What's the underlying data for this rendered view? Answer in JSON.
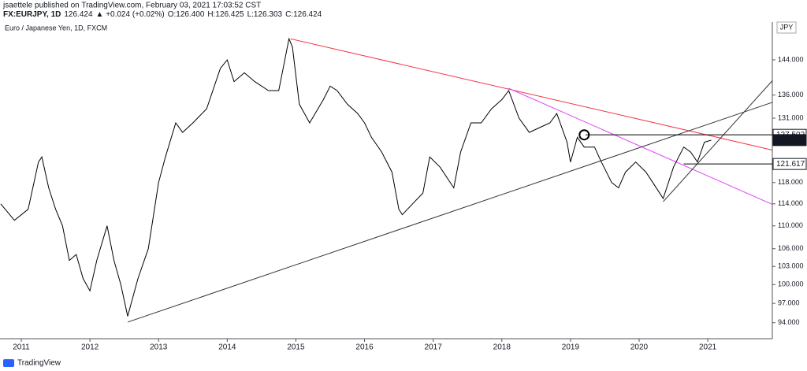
{
  "chart_data": {
    "type": "line",
    "title": "jsaettele published on TradingView.com, February 03, 2021 17:03:52 CST",
    "quote": [
      "FX:EURJPY, 1D",
      "126.424",
      "▲ +0.024 (+0.02%)",
      "O:126.400",
      "H:126.425",
      "L:126.303",
      "C:126.424"
    ],
    "subtitle": "Euro / Japanese Yen, 1D, FXCM",
    "currency": "JPY",
    "brand": "TradingView",
    "color": "#000000",
    "log_scale": true,
    "x": [
      2010.7,
      2010.9,
      2011.1,
      2011.25,
      2011.3,
      2011.4,
      2011.5,
      2011.6,
      2011.7,
      2011.8,
      2011.9,
      2012.0,
      2012.1,
      2012.25,
      2012.35,
      2012.45,
      2012.55,
      2012.7,
      2012.85,
      2013.0,
      2013.1,
      2013.25,
      2013.35,
      2013.5,
      2013.7,
      2013.9,
      2014.0,
      2014.1,
      2014.25,
      2014.4,
      2014.6,
      2014.75,
      2014.9,
      2014.95,
      2015.05,
      2015.2,
      2015.4,
      2015.5,
      2015.6,
      2015.75,
      2015.9,
      2016.0,
      2016.1,
      2016.25,
      2016.4,
      2016.5,
      2016.55,
      2016.7,
      2016.85,
      2016.95,
      2017.1,
      2017.3,
      2017.4,
      2017.55,
      2017.7,
      2017.85,
      2018.0,
      2018.1,
      2018.25,
      2018.4,
      2018.55,
      2018.7,
      2018.8,
      2018.95,
      2019.0,
      2019.1,
      2019.2,
      2019.35,
      2019.45,
      2019.6,
      2019.7,
      2019.8,
      2019.95,
      2020.1,
      2020.2,
      2020.3,
      2020.35,
      2020.5,
      2020.65,
      2020.75,
      2020.85,
      2020.95,
      2021.05
    ],
    "values": [
      114,
      111,
      113,
      122,
      123,
      117,
      113,
      110,
      104,
      105,
      101,
      99,
      104,
      110,
      104,
      100,
      95,
      101,
      106,
      118,
      123,
      130,
      128,
      130,
      133,
      142,
      144,
      139,
      141,
      139,
      137,
      137,
      149,
      147,
      134,
      130,
      135,
      138,
      137,
      134,
      132,
      130,
      127,
      124,
      120,
      113,
      112,
      114,
      116,
      123,
      121,
      117,
      124,
      130,
      130,
      133,
      135,
      137,
      131,
      128,
      129,
      130,
      132,
      126,
      122,
      127,
      125,
      125,
      122,
      118,
      117,
      120,
      122,
      120,
      118,
      116,
      115,
      121,
      125,
      124,
      122,
      126,
      126.4
    ],
    "xlim": [
      2010.69,
      2021.94
    ],
    "xticks": [
      2011,
      2012,
      2013,
      2014,
      2015,
      2016,
      2017,
      2018,
      2019,
      2020,
      2021
    ],
    "ylim": [
      91.6,
      153.1
    ],
    "yticks": [
      {
        "value": 94,
        "label": "94.000"
      },
      {
        "value": 97,
        "label": "97.000"
      },
      {
        "value": 100,
        "label": "100.000"
      },
      {
        "value": 103,
        "label": "103.000"
      },
      {
        "value": 106,
        "label": "106.000"
      },
      {
        "value": 110,
        "label": "110.000"
      },
      {
        "value": 114,
        "label": "114.000"
      },
      {
        "value": 118,
        "label": "118.000"
      },
      {
        "value": 131,
        "label": "131.000"
      },
      {
        "value": 136,
        "label": "136.000"
      },
      {
        "value": 144,
        "label": "144.000"
      }
    ],
    "marked_prices": [
      {
        "value": 127.502,
        "style": "outline"
      },
      {
        "value": 126.424,
        "style": "filled"
      },
      {
        "value": 121.617,
        "style": "outline"
      }
    ],
    "drawings": [
      {
        "color": "#f23645",
        "points": [
          [
            2014.92,
            149
          ],
          [
            2021.94,
            124.4
          ]
        ]
      },
      {
        "color": "#e040fb",
        "points": [
          [
            2018.1,
            137.5
          ],
          [
            2021.94,
            113.9
          ]
        ]
      },
      {
        "color": "#333333",
        "points": [
          [
            2012.55,
            94.1
          ],
          [
            2021.94,
            134.4
          ]
        ]
      },
      {
        "color": "#333333",
        "points": [
          [
            2020.35,
            114.4
          ],
          [
            2021.94,
            139.2
          ]
        ]
      },
      {
        "color": "#000000",
        "points": [
          [
            2019.22,
            127.502
          ],
          [
            2021.94,
            127.502
          ]
        ]
      },
      {
        "color": "#000000",
        "points": [
          [
            2020.65,
            121.617
          ],
          [
            2021.94,
            121.617
          ]
        ]
      }
    ],
    "highlight": {
      "x": 2019.2,
      "y": 127.5
    }
  }
}
